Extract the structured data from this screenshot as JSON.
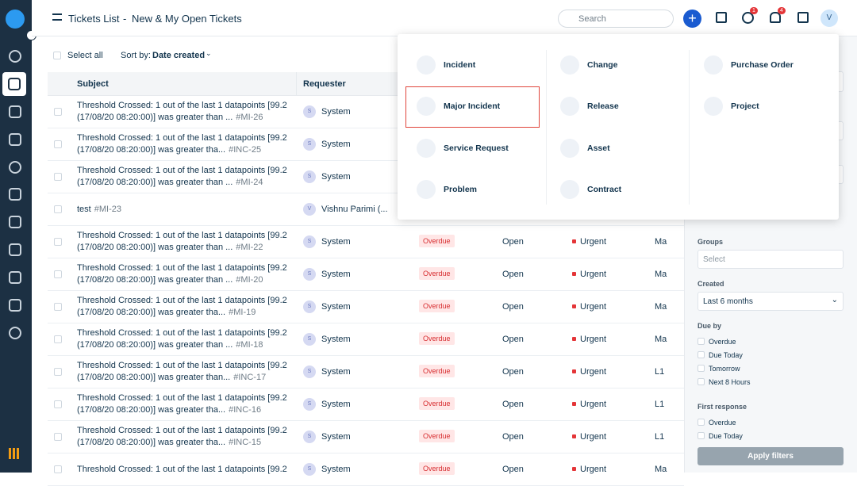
{
  "header": {
    "title": "Tickets List",
    "separator": "-",
    "view": "New & My Open Tickets",
    "search": "Search",
    "help_badge": "1",
    "notification_badge": "4",
    "avatar": "V"
  },
  "toolbar": {
    "select_all": "Select all",
    "sort_label": "Sort by:",
    "sort_value": "Date created"
  },
  "table": {
    "columns": [
      "Subject",
      "Requester"
    ],
    "rows": [
      {
        "s1": "Threshold Crossed: 1 out of the last 1 datapoints [99.2",
        "s2": "(17/08/20 08:20:00)] was greater than ...",
        "id": "#MI-26",
        "avatar": "S",
        "requester": "System"
      },
      {
        "s1": "Threshold Crossed: 1 out of the last 1 datapoints [99.2",
        "s2": "(17/08/20 08:20:00)] was greater tha...",
        "id": "#INC-25",
        "avatar": "S",
        "requester": "System"
      },
      {
        "s1": "Threshold Crossed: 1 out of the last 1 datapoints [99.2",
        "s2": "(17/08/20 08:20:00)] was greater than ...",
        "id": "#MI-24",
        "avatar": "S",
        "requester": "System"
      },
      {
        "s1": "test",
        "id": "#MI-23",
        "avatar": "V",
        "requester": "Vishnu Parimi (..."
      },
      {
        "s1": "Threshold Crossed: 1 out of the last 1 datapoints [99.2",
        "s2": "(17/08/20 08:20:00)] was greater than ...",
        "id": "#MI-22",
        "avatar": "S",
        "requester": "System",
        "status": "Overdue",
        "state": "Open",
        "priority": "Urgent",
        "agent": "Ma"
      },
      {
        "s1": "Threshold Crossed: 1 out of the last 1 datapoints [99.2",
        "s2": "(17/08/20 08:20:00)] was greater than ...",
        "id": "#MI-20",
        "avatar": "S",
        "requester": "System",
        "status": "Overdue",
        "state": "Open",
        "priority": "Urgent",
        "agent": "Ma"
      },
      {
        "s1": "Threshold Crossed: 1 out of the last 1 datapoints [99.2",
        "s2": "(17/08/20 08:20:00)] was greater tha...",
        "id": "#MI-19",
        "avatar": "S",
        "requester": "System",
        "status": "Overdue",
        "state": "Open",
        "priority": "Urgent",
        "agent": "Ma"
      },
      {
        "s1": "Threshold Crossed: 1 out of the last 1 datapoints [99.2",
        "s2": "(17/08/20 08:20:00)] was greater than ...",
        "id": "#MI-18",
        "avatar": "S",
        "requester": "System",
        "status": "Overdue",
        "state": "Open",
        "priority": "Urgent",
        "agent": "Ma"
      },
      {
        "s1": "Threshold Crossed: 1 out of the last 1 datapoints [99.2",
        "s2": "(17/08/20 08:20:00)] was greater than...",
        "id": "#INC-17",
        "avatar": "S",
        "requester": "System",
        "status": "Overdue",
        "state": "Open",
        "priority": "Urgent",
        "agent": "L1"
      },
      {
        "s1": "Threshold Crossed: 1 out of the last 1 datapoints [99.2",
        "s2": "(17/08/20 08:20:00)] was greater tha...",
        "id": "#INC-16",
        "avatar": "S",
        "requester": "System",
        "status": "Overdue",
        "state": "Open",
        "priority": "Urgent",
        "agent": "L1"
      },
      {
        "s1": "Threshold Crossed: 1 out of the last 1 datapoints [99.2",
        "s2": "(17/08/20 08:20:00)] was greater tha...",
        "id": "#INC-15",
        "avatar": "S",
        "requester": "System",
        "status": "Overdue",
        "state": "Open",
        "priority": "Urgent",
        "agent": "L1"
      },
      {
        "s1": "Threshold Crossed: 1 out of the last 1 datapoints [99.2",
        "avatar": "S",
        "requester": "System",
        "status": "Overdue",
        "state": "Open",
        "priority": "Urgent",
        "agent": "Ma"
      }
    ]
  },
  "new_menu": {
    "columns": [
      [
        "Incident",
        "Major Incident",
        "Service Request",
        "Problem"
      ],
      [
        "Change",
        "Release",
        "Asset",
        "Contract"
      ],
      [
        "Purchase Order",
        "Project"
      ]
    ]
  },
  "filters": {
    "groups": {
      "label": "Groups",
      "placeholder": "Select"
    },
    "created": {
      "label": "Created",
      "value": "Last 6 months"
    },
    "due_by": {
      "label": "Due by",
      "options": [
        "Overdue",
        "Due Today",
        "Tomorrow",
        "Next 8 Hours"
      ]
    },
    "first_response": {
      "label": "First response",
      "options": [
        "Overdue",
        "Due Today"
      ]
    },
    "apply": "Apply filters"
  }
}
